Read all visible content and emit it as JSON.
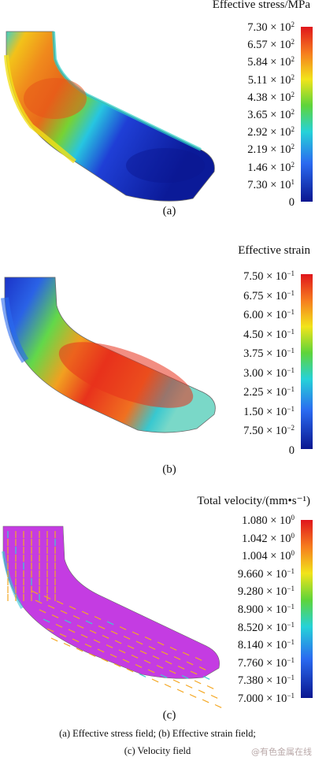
{
  "panels": [
    {
      "title": "Effective stress/MPa",
      "ticks": [
        {
          "m": "7.30",
          "e": "2"
        },
        {
          "m": "6.57",
          "e": "2"
        },
        {
          "m": "5.84",
          "e": "2"
        },
        {
          "m": "5.11",
          "e": "2"
        },
        {
          "m": "4.38",
          "e": "2"
        },
        {
          "m": "3.65",
          "e": "2"
        },
        {
          "m": "2.92",
          "e": "2"
        },
        {
          "m": "2.19",
          "e": "2"
        },
        {
          "m": "1.46",
          "e": "2"
        },
        {
          "m": "7.30",
          "e": "1"
        },
        {
          "m": "0",
          "e": ""
        }
      ],
      "label": "(a)"
    },
    {
      "title": "Effective strain",
      "ticks": [
        {
          "m": "7.50",
          "e": "−1"
        },
        {
          "m": "6.75",
          "e": "−1"
        },
        {
          "m": "6.00",
          "e": "−1"
        },
        {
          "m": "4.50",
          "e": "−1"
        },
        {
          "m": "3.75",
          "e": "−1"
        },
        {
          "m": "3.00",
          "e": "−1"
        },
        {
          "m": "2.25",
          "e": "−1"
        },
        {
          "m": "1.50",
          "e": "−1"
        },
        {
          "m": "7.50",
          "e": "−2"
        },
        {
          "m": "0",
          "e": ""
        }
      ],
      "label": "(b)"
    },
    {
      "title": "Total  velocity/(mm•s⁻¹)",
      "ticks": [
        {
          "m": "1.080",
          "e": "0"
        },
        {
          "m": "1.042",
          "e": "0"
        },
        {
          "m": "1.004",
          "e": "0"
        },
        {
          "m": "9.660",
          "e": "−1"
        },
        {
          "m": "9.280",
          "e": "−1"
        },
        {
          "m": "8.900",
          "e": "−1"
        },
        {
          "m": "8.520",
          "e": "−1"
        },
        {
          "m": "8.140",
          "e": "−1"
        },
        {
          "m": "7.760",
          "e": "−1"
        },
        {
          "m": "7.380",
          "e": "−1"
        },
        {
          "m": "7.000",
          "e": "−1"
        }
      ],
      "label": "(c)"
    }
  ],
  "caption": {
    "line1": "(a) Effective stress field; (b) Effective strain field;",
    "line2": "(c) Velocity field"
  },
  "watermark": "@有色金属在线",
  "colors": {
    "red": "#e0261c",
    "orange": "#f58b1f",
    "yellow": "#f2e51a",
    "green": "#46c83c",
    "cyan": "#2ed3d8",
    "blue": "#1f4fe0",
    "navy": "#0b1c9c",
    "magenta": "#c83ce0",
    "arrow": "#f4a824"
  }
}
